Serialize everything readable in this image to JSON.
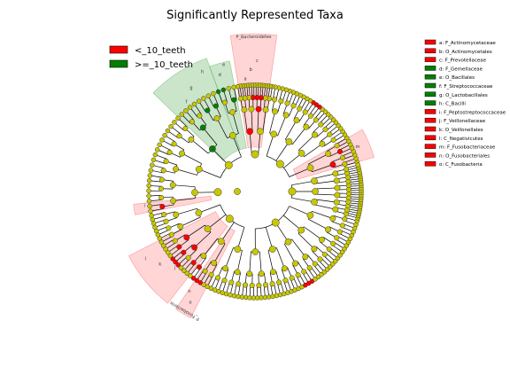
{
  "chart_data": {
    "type": "cladogram",
    "title": "Significantly Represented Taxa",
    "group_legend": [
      {
        "label": "<_10_teeth",
        "color": "#ff0000"
      },
      {
        "label": ">=_10_teeth",
        "color": "#008000"
      }
    ],
    "taxa_key": [
      {
        "label": "a: F_Actinomycetaceae",
        "group": "<_10_teeth"
      },
      {
        "label": "b: O_Actinomycetales",
        "group": "<_10_teeth"
      },
      {
        "label": "c: F_Prevotellaceae",
        "group": "<_10_teeth"
      },
      {
        "label": "d: F_Gemellaceae",
        "group": ">=_10_teeth"
      },
      {
        "label": "e: O_Bacillales",
        "group": ">=_10_teeth"
      },
      {
        "label": "f: F_Streptococcaceae",
        "group": ">=_10_teeth"
      },
      {
        "label": "g: O_Lactobacillales",
        "group": ">=_10_teeth"
      },
      {
        "label": "h: C_Bacilli",
        "group": ">=_10_teeth"
      },
      {
        "label": "i: F_Peptostreptococcaceae",
        "group": "<_10_teeth"
      },
      {
        "label": "j: F_Veillonellaceae",
        "group": "<_10_teeth"
      },
      {
        "label": "k: O_Veillonellales",
        "group": "<_10_teeth"
      },
      {
        "label": "l: C_Negativicutes",
        "group": "<_10_teeth"
      },
      {
        "label": "m: F_Fusobacteriaceae",
        "group": "<_10_teeth"
      },
      {
        "label": "n: O_Fusobacteriales",
        "group": "<_10_teeth"
      },
      {
        "label": "o: C_Fusobacteria",
        "group": "<_10_teeth"
      }
    ],
    "highlighted_clades": [
      {
        "label": "P_Bacteroidetes",
        "group": "<_10_teeth"
      },
      {
        "label": "P_Fusobacteria",
        "group": "<_10_teeth"
      }
    ],
    "sector_letters": [
      "c",
      "b",
      "a",
      "h",
      "g",
      "f",
      "e",
      "d",
      "i",
      "l",
      "k",
      "j",
      "o",
      "n",
      "m"
    ]
  },
  "colors": {
    "enriched_low": "#ff0000",
    "enriched_high": "#008000",
    "shade_low": "#ffb3b3",
    "shade_high": "#9fd09f",
    "not_significant": "#c8c800"
  }
}
